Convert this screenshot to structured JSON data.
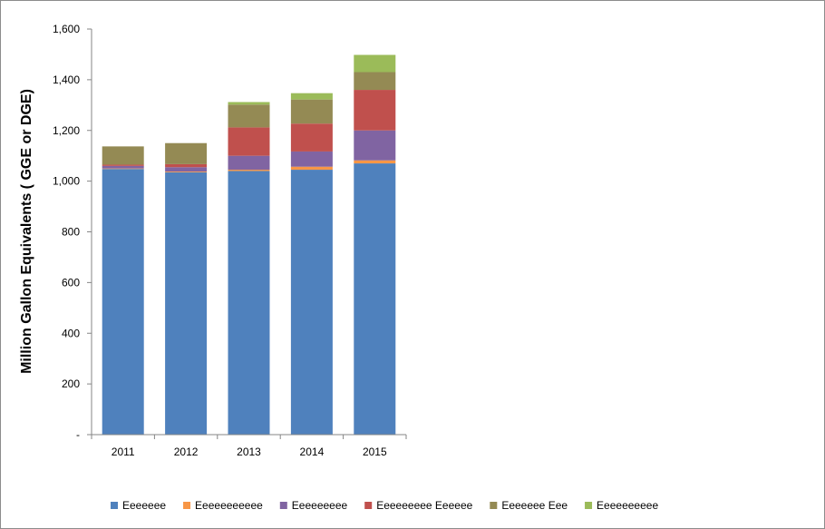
{
  "chart_data": {
    "type": "bar",
    "stacked": true,
    "categories": [
      "2011",
      "2012",
      "2013",
      "2014",
      "2015"
    ],
    "series": [
      {
        "name": "Eeeeeee",
        "color": "#4f81bd",
        "values": [
          1048,
          1035,
          1040,
          1045,
          1070
        ]
      },
      {
        "name": "Eeeeeeeeeee",
        "color": "#f79646",
        "values": [
          2,
          3,
          5,
          12,
          12
        ]
      },
      {
        "name": "Eeeeeeeee",
        "color": "#8064a2",
        "values": [
          10,
          17,
          55,
          60,
          118
        ]
      },
      {
        "name": "Eeeeeeeee Eeeeee",
        "color": "#c0504d",
        "values": [
          5,
          12,
          112,
          110,
          160
        ]
      },
      {
        "name": "Eeeeeee Eee",
        "color": "#948a54",
        "values": [
          72,
          83,
          90,
          95,
          70
        ]
      },
      {
        "name": "Eeeeeeeeee",
        "color": "#9bbb59",
        "values": [
          0,
          0,
          10,
          25,
          68
        ]
      }
    ],
    "ylabel": "Million Gallon Equivalents ( GGE or DGE)",
    "ylim": [
      0,
      1600
    ],
    "yticks": [
      0,
      200,
      400,
      600,
      800,
      1000,
      1200,
      1400,
      1600
    ],
    "ytick_labels": [
      "-",
      "200",
      "400",
      "600",
      "800",
      "1,000",
      "1,200",
      "1,400",
      "1,600"
    ],
    "grid": false,
    "legend_position": "bottom"
  }
}
